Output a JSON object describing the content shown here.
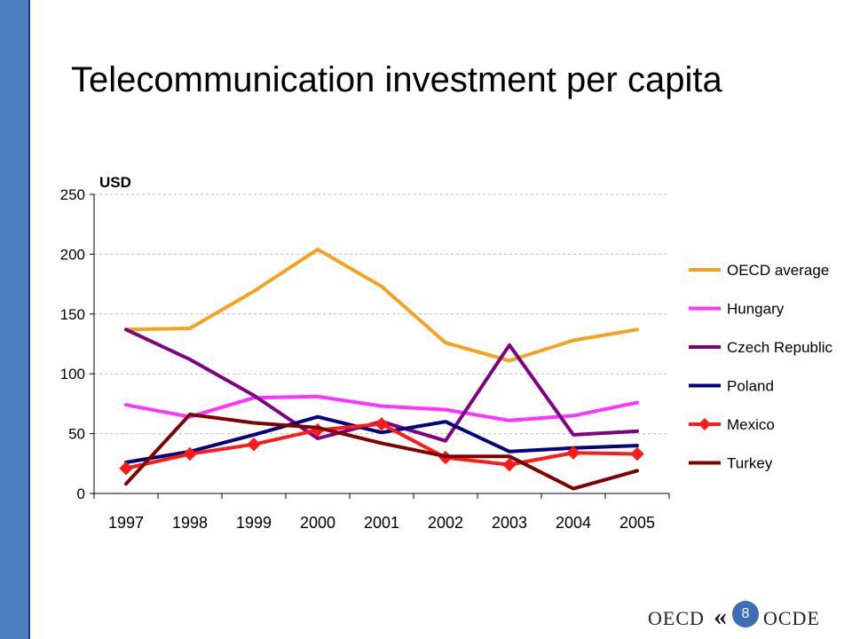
{
  "slide": {
    "title": "Telecommunication investment per capita",
    "page_number": "8",
    "logo_left": "OECD",
    "logo_right": "OCDE",
    "logo_mark": "«"
  },
  "colors": {
    "sidebar": "#4a7fc0",
    "grid": "#bbbbbb"
  },
  "chart_data": {
    "type": "line",
    "unit_label": "USD",
    "xlabel": "",
    "ylabel": "",
    "x": [
      "1997",
      "1998",
      "1999",
      "2000",
      "2001",
      "2002",
      "2003",
      "2004",
      "2005"
    ],
    "ylim": [
      0,
      250
    ],
    "yticks": [
      0,
      50,
      100,
      150,
      200,
      250
    ],
    "grid": "horizontal dashed",
    "legend_position": "right",
    "series": [
      {
        "name": "OECD average",
        "color": "#f5a31e",
        "marker": "none",
        "values": [
          137,
          138,
          169,
          204,
          173,
          126,
          111,
          128,
          137
        ]
      },
      {
        "name": "Hungary",
        "color": "#ff33ff",
        "marker": "none",
        "values": [
          74,
          64,
          80,
          81,
          73,
          70,
          61,
          65,
          76
        ]
      },
      {
        "name": "Czech Republic",
        "color": "#800080",
        "marker": "none",
        "values": [
          137,
          112,
          82,
          46,
          60,
          44,
          124,
          49,
          52
        ]
      },
      {
        "name": "Poland",
        "color": "#000080",
        "marker": "none",
        "values": [
          26,
          35,
          49,
          64,
          51,
          60,
          35,
          38,
          40
        ]
      },
      {
        "name": "Mexico",
        "color": "#ff1a1a",
        "marker": "diamond",
        "values": [
          21,
          33,
          41,
          53,
          58,
          30,
          24,
          34,
          33
        ]
      },
      {
        "name": "Turkey",
        "color": "#800000",
        "marker": "none",
        "values": [
          8,
          66,
          59,
          55,
          42,
          31,
          31,
          4,
          19
        ]
      }
    ]
  }
}
